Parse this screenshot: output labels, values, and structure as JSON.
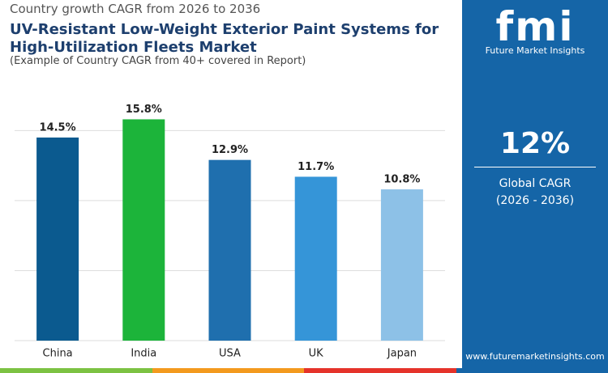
{
  "chart_data": {
    "type": "bar",
    "kicker": "Country growth CAGR from 2026 to 2036",
    "title": "UV-Resistant Low-Weight Exterior Paint Systems for High-Utilization Fleets Market",
    "subtitle": "(Example of Country CAGR from 40+ covered in Report)",
    "categories": [
      "China",
      "India",
      "USA",
      "UK",
      "Japan"
    ],
    "values": [
      14.5,
      15.8,
      12.9,
      11.7,
      10.8
    ],
    "value_labels": [
      "14.5%",
      "15.8%",
      "12.9%",
      "11.7%",
      "10.8%"
    ],
    "colors": [
      "#0b5a8f",
      "#1cb43a",
      "#1f6fae",
      "#3595d8",
      "#8dc1e7"
    ],
    "ylim": [
      0,
      16
    ],
    "yticks": [
      0,
      5,
      10,
      15
    ],
    "grid": true
  },
  "sidebar": {
    "brand": "fmi",
    "tagline": "Future Market Insights",
    "headline": "12%",
    "label": "Global CAGR",
    "period": "(2026 - 2036)",
    "website": "www.futuremarketinsights.com"
  }
}
